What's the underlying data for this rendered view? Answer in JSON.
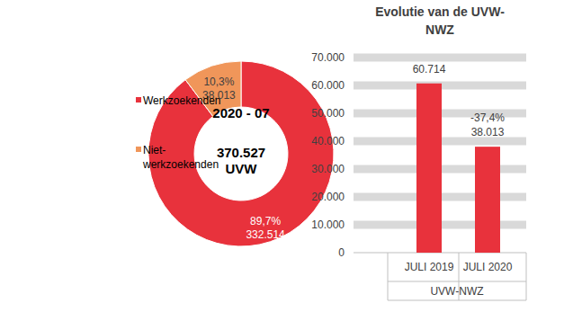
{
  "chart_data": [
    {
      "type": "pie",
      "subtitle": "2020 - 07",
      "total": 370527,
      "total_label": "370.527",
      "total_unit": "UVW",
      "categories": [
        "Werkzoekenden",
        "Niet-werkzoekenden"
      ],
      "values": [
        332514,
        38013
      ],
      "value_labels": [
        "332.514",
        "38.013"
      ],
      "shares": [
        89.7,
        10.3
      ],
      "share_labels": [
        "89,7%",
        "10,3%"
      ],
      "colors": [
        "#e8323c",
        "#f0965a"
      ],
      "data_labels": true,
      "legend": "left"
    },
    {
      "type": "bar",
      "title": "Evolutie van de UVW-NWZ",
      "x_label": "UVW-NWZ",
      "categories": [
        "JULI 2019",
        "JULI 2020"
      ],
      "values": [
        60714,
        38013
      ],
      "value_labels": [
        "60.714",
        "38.013"
      ],
      "change": -37.4,
      "change_label": "-37,4%",
      "color": "#e8323c",
      "ylim": [
        0,
        70000
      ],
      "yticks": [
        0,
        {
          "value": 10000,
          "label": "10.000"
        },
        {
          "value": 20000,
          "label": "20.000"
        },
        {
          "value": 30000,
          "label": "30.000"
        },
        {
          "value": 40000,
          "label": "40.000"
        },
        {
          "value": 50000,
          "label": "50.000"
        },
        {
          "value": 60000,
          "label": "60.000"
        },
        {
          "value": 70000,
          "label": "70.000"
        }
      ],
      "grid": true,
      "data_labels": true
    }
  ]
}
